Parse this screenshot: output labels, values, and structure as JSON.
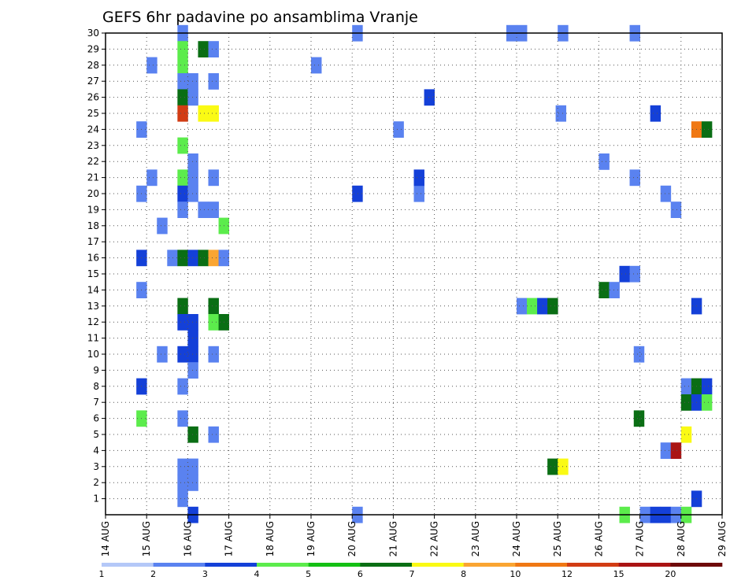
{
  "chart_data": {
    "type": "heatmap",
    "title": "GEFS 6hr padavine po ansamblima Vranje",
    "xlabel": "",
    "ylabel": "",
    "x_ticks": [
      "14 AUG",
      "15 AUG",
      "16 AUG",
      "17 AUG",
      "18 AUG",
      "19 AUG",
      "20 AUG",
      "21 AUG",
      "22 AUG",
      "23 AUG",
      "24 AUG",
      "25 AUG",
      "26 AUG",
      "27 AUG",
      "28 AUG",
      "29 AUG"
    ],
    "y_ticks": [
      "1",
      "2",
      "3",
      "4",
      "5",
      "6",
      "7",
      "8",
      "9",
      "10",
      "11",
      "12",
      "13",
      "14",
      "15",
      "16",
      "17",
      "18",
      "19",
      "20",
      "21",
      "22",
      "23",
      "24",
      "25",
      "26",
      "27",
      "28",
      "29",
      "30"
    ],
    "xlim": [
      0,
      15
    ],
    "ylim": [
      0,
      30
    ],
    "x_unit": "days since 14 AUG 00Z, 6-hour steps",
    "y_unit": "ensemble member",
    "grid": true,
    "colorbar": {
      "boundaries": [
        "1",
        "2",
        "3",
        "4",
        "5",
        "6",
        "7",
        "8",
        "10",
        "12",
        "15",
        "20"
      ],
      "colors": [
        "#b4c8f8",
        "#5a82f0",
        "#1440d8",
        "#5cec4c",
        "#14c014",
        "#0a6e14",
        "#fafa14",
        "#faa532",
        "#f07814",
        "#d23c14",
        "#aa1414",
        "#6e0a0a"
      ]
    },
    "cells": [
      [
        1.75,
        30,
        1
      ],
      [
        1.75,
        29,
        3
      ],
      [
        2.25,
        29,
        5
      ],
      [
        2.5,
        29,
        1
      ],
      [
        1.0,
        28,
        1
      ],
      [
        1.75,
        28,
        3
      ],
      [
        1.75,
        27,
        1
      ],
      [
        2.0,
        27,
        1
      ],
      [
        2.5,
        27,
        1
      ],
      [
        1.75,
        26,
        5
      ],
      [
        2.0,
        26,
        1
      ],
      [
        1.75,
        25,
        9
      ],
      [
        2.25,
        25,
        6
      ],
      [
        2.5,
        25,
        6
      ],
      [
        0.75,
        24,
        1
      ],
      [
        1.75,
        23,
        3
      ],
      [
        2.0,
        22,
        1
      ],
      [
        1.0,
        21,
        1
      ],
      [
        1.75,
        21,
        3
      ],
      [
        2.0,
        21,
        1
      ],
      [
        2.5,
        21,
        1
      ],
      [
        0.75,
        20,
        1
      ],
      [
        1.75,
        20,
        2
      ],
      [
        2.0,
        20,
        1
      ],
      [
        1.75,
        19,
        1
      ],
      [
        2.25,
        19,
        1
      ],
      [
        2.5,
        19,
        1
      ],
      [
        1.25,
        18,
        1
      ],
      [
        2.75,
        18,
        3
      ],
      [
        0.75,
        16,
        2
      ],
      [
        1.5,
        16,
        1
      ],
      [
        1.75,
        16,
        5
      ],
      [
        2.0,
        16,
        2
      ],
      [
        2.25,
        16,
        5
      ],
      [
        2.5,
        16,
        7
      ],
      [
        2.75,
        16,
        1
      ],
      [
        0.75,
        14,
        1
      ],
      [
        1.75,
        13,
        5
      ],
      [
        2.5,
        13,
        5
      ],
      [
        1.75,
        12,
        2
      ],
      [
        2.0,
        12,
        2
      ],
      [
        2.5,
        12,
        3
      ],
      [
        2.75,
        12,
        5
      ],
      [
        2.0,
        11,
        2
      ],
      [
        2.0,
        10,
        2
      ],
      [
        1.25,
        10,
        1
      ],
      [
        1.75,
        10,
        2
      ],
      [
        2.5,
        10,
        1
      ],
      [
        2.0,
        9,
        1
      ],
      [
        0.75,
        8,
        2
      ],
      [
        1.75,
        8,
        1
      ],
      [
        0.75,
        6,
        3
      ],
      [
        1.75,
        6,
        1
      ],
      [
        2.0,
        5,
        5
      ],
      [
        2.5,
        5,
        1
      ],
      [
        1.75,
        3,
        1
      ],
      [
        2.0,
        3,
        1
      ],
      [
        1.75,
        2,
        1
      ],
      [
        2.0,
        2,
        1
      ],
      [
        1.75,
        1,
        1
      ],
      [
        2.0,
        0,
        2
      ],
      [
        6.0,
        30,
        1
      ],
      [
        5.0,
        28,
        1
      ],
      [
        6.0,
        20,
        2
      ],
      [
        7.5,
        20,
        1
      ],
      [
        7.0,
        24,
        1
      ],
      [
        7.5,
        21,
        2
      ],
      [
        7.75,
        26,
        2
      ],
      [
        6.0,
        0,
        1
      ],
      [
        9.75,
        30,
        1
      ],
      [
        10.0,
        30,
        1
      ],
      [
        10.0,
        13,
        1
      ],
      [
        10.25,
        13,
        3
      ],
      [
        10.5,
        13,
        2
      ],
      [
        10.75,
        13,
        5
      ],
      [
        10.75,
        3,
        5
      ],
      [
        11.0,
        3,
        6
      ],
      [
        11.0,
        30,
        1
      ],
      [
        10.95,
        25,
        1
      ],
      [
        12.0,
        22,
        1
      ],
      [
        12.0,
        14,
        5
      ],
      [
        12.25,
        14,
        1
      ],
      [
        12.5,
        15,
        2
      ],
      [
        12.75,
        15,
        1
      ],
      [
        12.75,
        30,
        1
      ],
      [
        12.75,
        21,
        1
      ],
      [
        12.5,
        0,
        3
      ],
      [
        12.85,
        10,
        1
      ],
      [
        12.85,
        6,
        5
      ],
      [
        13.25,
        25,
        2
      ],
      [
        13.0,
        0,
        1
      ],
      [
        13.25,
        0,
        2
      ],
      [
        13.5,
        0,
        2
      ],
      [
        13.5,
        20,
        1
      ],
      [
        13.75,
        19,
        1
      ],
      [
        13.5,
        4,
        1
      ],
      [
        13.75,
        4,
        10
      ],
      [
        13.75,
        0,
        1
      ],
      [
        14.0,
        0,
        3
      ],
      [
        14.25,
        24,
        8
      ],
      [
        14.5,
        24,
        5
      ],
      [
        14.25,
        13,
        2
      ],
      [
        14.0,
        8,
        1
      ],
      [
        14.25,
        8,
        5
      ],
      [
        14.5,
        8,
        2
      ],
      [
        14.0,
        7,
        5
      ],
      [
        14.25,
        7,
        2
      ],
      [
        14.5,
        7,
        3
      ],
      [
        14.0,
        5,
        6
      ],
      [
        14.25,
        1,
        2
      ]
    ]
  }
}
